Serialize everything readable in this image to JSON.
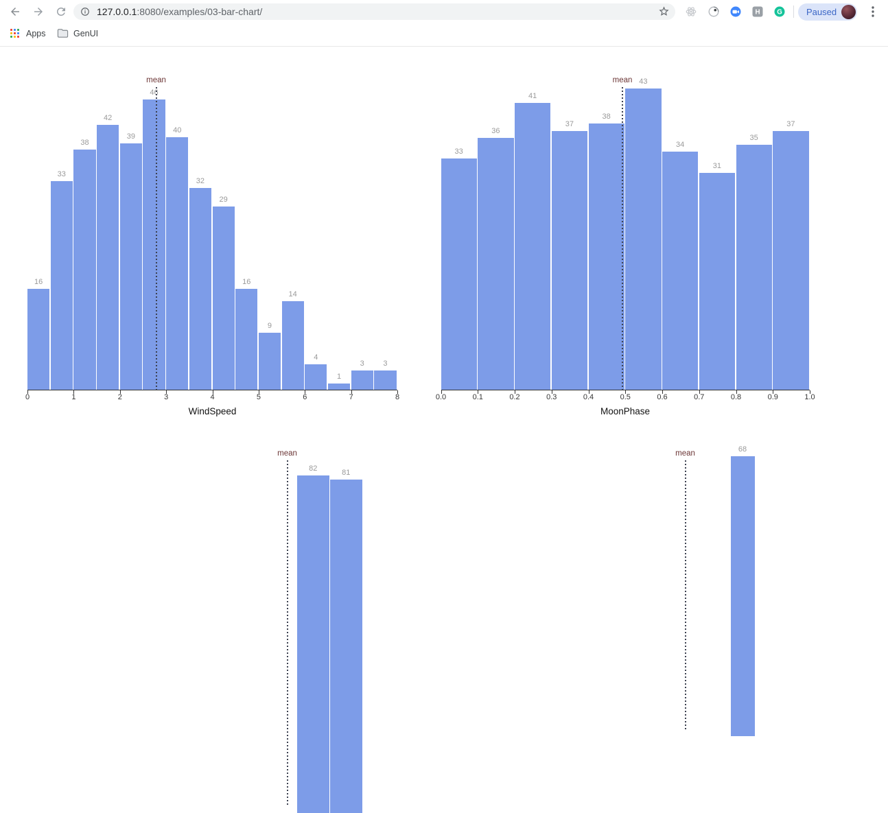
{
  "browser": {
    "toolbar": {
      "url_host": "127.0.0.1",
      "url_rest": ":8080/examples/03-bar-chart/",
      "profile_chip_label": "Paused",
      "extension_letters": {
        "h_badge": "H",
        "grammarly_badge": "G"
      }
    },
    "bookmarks_bar": {
      "items": [
        {
          "label": "Apps"
        },
        {
          "label": "GenUI"
        }
      ]
    }
  },
  "colors": {
    "bar": "#7d9ce8",
    "bar_value_label": "#9a9a9a",
    "mean_label": "#6b3535",
    "mean_line": "#3c4150",
    "axis": "#333333",
    "chip_bg": "#dbe4f9",
    "chip_text": "#3b66c6"
  },
  "chart_data": [
    {
      "type": "bar",
      "variant": "histogram",
      "title": "WindSpeed",
      "xlabel": "WindSpeed",
      "bins": {
        "start": 0,
        "end": 8,
        "bin_width": 0.5
      },
      "values": [
        16,
        33,
        38,
        42,
        39,
        46,
        40,
        32,
        29,
        16,
        9,
        14,
        4,
        1,
        3,
        3
      ],
      "x_ticks": [
        "0",
        "1",
        "2",
        "3",
        "4",
        "5",
        "6",
        "7",
        "8"
      ],
      "ylim": [
        0,
        46
      ],
      "grid": false,
      "mean_annotation": {
        "label": "mean",
        "x": 2.78
      }
    },
    {
      "type": "bar",
      "variant": "histogram",
      "title": "MoonPhase",
      "xlabel": "MoonPhase",
      "bins": {
        "start": 0,
        "end": 1,
        "bin_width": 0.1
      },
      "values": [
        33,
        36,
        41,
        37,
        38,
        43,
        34,
        31,
        35,
        37
      ],
      "x_ticks": [
        "0.0",
        "0.1",
        "0.2",
        "0.3",
        "0.4",
        "0.5",
        "0.6",
        "0.7",
        "0.8",
        "0.9",
        "1.0"
      ],
      "ylim": [
        0,
        43
      ],
      "grid": false,
      "mean_annotation": {
        "label": "mean",
        "x": 0.49
      }
    },
    {
      "type": "bar",
      "variant": "histogram-partial",
      "title": "",
      "xlabel": "",
      "values": [
        82,
        81
      ],
      "x_ticks": [],
      "grid": false,
      "mean_annotation": {
        "label": "mean"
      }
    },
    {
      "type": "bar",
      "variant": "histogram-partial",
      "title": "",
      "xlabel": "",
      "values": [
        68
      ],
      "x_ticks": [],
      "grid": false,
      "mean_annotation": {
        "label": "mean"
      }
    }
  ]
}
